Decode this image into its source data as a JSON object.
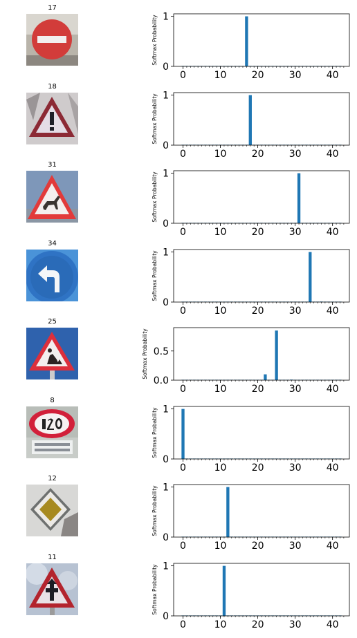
{
  "figure": {
    "ylabel": "Softmax Probability",
    "xticks": [
      0,
      10,
      20,
      30,
      40
    ],
    "xlim": [
      -2.5,
      44.5
    ],
    "bar_color": "#1f77b4"
  },
  "rows": [
    {
      "label": "17",
      "sign": "no-entry"
    },
    {
      "label": "18",
      "sign": "general-caution"
    },
    {
      "label": "31",
      "sign": "wild-animals-crossing"
    },
    {
      "label": "34",
      "sign": "turn-left-ahead"
    },
    {
      "label": "25",
      "sign": "road-work"
    },
    {
      "label": "8",
      "sign": "speed-limit-120"
    },
    {
      "label": "12",
      "sign": "priority-road"
    },
    {
      "label": "11",
      "sign": "right-of-way-at-next-intersection"
    }
  ],
  "chart_data": [
    {
      "type": "bar",
      "ylabel": "Softmax Probability",
      "xlim": [
        -2.5,
        44.5
      ],
      "ylim": [
        0,
        1.05
      ],
      "yticks": [
        0,
        1
      ],
      "yticklabels": [
        "0",
        "1"
      ],
      "x": [
        17
      ],
      "values": [
        1.0
      ]
    },
    {
      "type": "bar",
      "ylabel": "Softmax Probability",
      "xlim": [
        -2.5,
        44.5
      ],
      "ylim": [
        0,
        1.05
      ],
      "yticks": [
        0,
        1
      ],
      "yticklabels": [
        "0",
        "1"
      ],
      "x": [
        18
      ],
      "values": [
        1.0
      ]
    },
    {
      "type": "bar",
      "ylabel": "Softmax Probability",
      "xlim": [
        -2.5,
        44.5
      ],
      "ylim": [
        0,
        1.05
      ],
      "yticks": [
        0,
        1
      ],
      "yticklabels": [
        "0",
        "1"
      ],
      "x": [
        31
      ],
      "values": [
        1.0
      ]
    },
    {
      "type": "bar",
      "ylabel": "Softmax Probability",
      "xlim": [
        -2.5,
        44.5
      ],
      "ylim": [
        0,
        1.05
      ],
      "yticks": [
        0,
        1
      ],
      "yticklabels": [
        "0",
        "1"
      ],
      "x": [
        34,
        37
      ],
      "values": [
        1.0,
        0.01
      ]
    },
    {
      "type": "bar",
      "ylabel": "Softmax Probability",
      "xlim": [
        -2.5,
        44.5
      ],
      "ylim": [
        0,
        0.9
      ],
      "yticks": [
        0,
        0.5
      ],
      "yticklabels": [
        "0.0",
        "0.5"
      ],
      "x": [
        22,
        25,
        29
      ],
      "values": [
        0.1,
        0.85,
        0.01
      ]
    },
    {
      "type": "bar",
      "ylabel": "Softmax Probability",
      "xlim": [
        -2.5,
        44.5
      ],
      "ylim": [
        0,
        1.05
      ],
      "yticks": [
        0,
        1
      ],
      "yticklabels": [
        "0",
        "1"
      ],
      "x": [
        0
      ],
      "values": [
        1.0
      ]
    },
    {
      "type": "bar",
      "ylabel": "Softmax Probability",
      "xlim": [
        -2.5,
        44.5
      ],
      "ylim": [
        0,
        1.05
      ],
      "yticks": [
        0,
        1
      ],
      "yticklabels": [
        "0",
        "1"
      ],
      "x": [
        12
      ],
      "values": [
        1.0
      ]
    },
    {
      "type": "bar",
      "ylabel": "Softmax Probability",
      "xlim": [
        -2.5,
        44.5
      ],
      "ylim": [
        0,
        1.05
      ],
      "yticks": [
        0,
        1
      ],
      "yticklabels": [
        "0",
        "1"
      ],
      "x": [
        11
      ],
      "values": [
        1.0
      ]
    }
  ]
}
